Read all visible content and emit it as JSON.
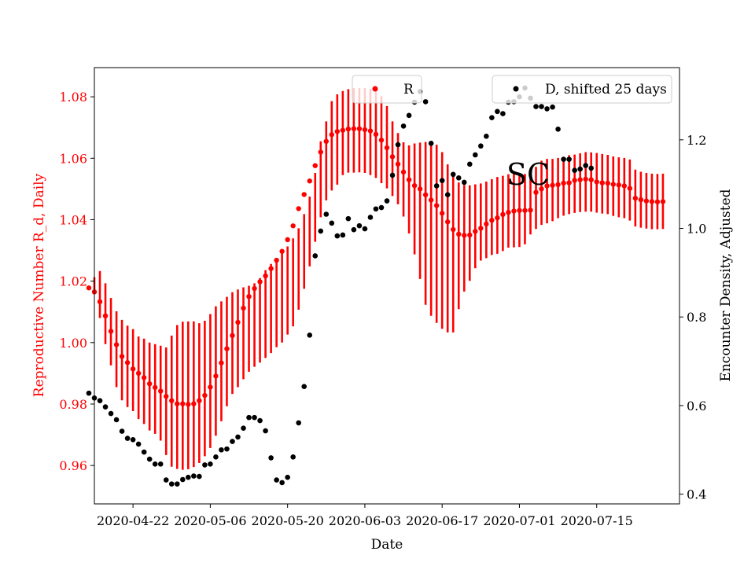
{
  "chart_data": {
    "type": "scatter",
    "annotation": "SC",
    "xlabel": "Date",
    "ylabel_left": "Reproductive Number R_d, Daily",
    "ylabel_right": "Encounter Density, Adjusted",
    "x_ticks": [
      "2020-04-22",
      "2020-05-06",
      "2020-05-20",
      "2020-06-03",
      "2020-06-17",
      "2020-07-01",
      "2020-07-15"
    ],
    "y_left_ticks": [
      "0.96",
      "0.98",
      "1.00",
      "1.02",
      "1.04",
      "1.06",
      "1.08"
    ],
    "y_right_ticks": [
      "0.4",
      "0.6",
      "0.8",
      "1.0",
      "1.2"
    ],
    "x_range": [
      "2020-04-15",
      "2020-07-30"
    ],
    "y_left_range": [
      0.9475,
      1.0895
    ],
    "y_right_range": [
      0.378,
      1.363
    ],
    "grid": false,
    "colors": {
      "r": "#ff0000",
      "d": "#000000",
      "r_label": "#ff0000"
    },
    "legends": [
      {
        "label": "R",
        "color": "#ff0000",
        "placement": "upper-center"
      },
      {
        "label": "D, shifted 25 days",
        "color": "#000000",
        "placement": "upper-right"
      }
    ],
    "series": [
      {
        "name": "R",
        "axis": "left",
        "start_date": "2020-04-14",
        "values": [
          1.0178,
          1.0165,
          1.0133,
          1.0087,
          1.0037,
          0.9993,
          0.9955,
          0.9935,
          0.9914,
          0.99,
          0.9886,
          0.9866,
          0.9854,
          0.9842,
          0.9825,
          0.9811,
          0.9801,
          0.9801,
          0.9799,
          0.9801,
          0.9811,
          0.9828,
          0.9855,
          0.9891,
          0.9934,
          0.998,
          1.0023,
          1.0066,
          1.0112,
          1.015,
          1.0176,
          1.0198,
          1.0217,
          1.0241,
          1.0268,
          1.0297,
          1.0335,
          1.038,
          1.0436,
          1.0482,
          1.0526,
          1.0576,
          1.062,
          1.0655,
          1.0677,
          1.0687,
          1.0691,
          1.0695,
          1.0696,
          1.0696,
          1.0693,
          1.0689,
          1.0678,
          1.0659,
          1.0634,
          1.0605,
          1.0581,
          1.0555,
          1.053,
          1.0511,
          1.05,
          1.0481,
          1.0464,
          1.0446,
          1.0421,
          1.0393,
          1.0368,
          1.0353,
          1.0349,
          1.035,
          1.0362,
          1.0372,
          1.0386,
          1.0398,
          1.0406,
          1.0417,
          1.0424,
          1.0428,
          1.043,
          1.043,
          1.0431,
          1.0489,
          1.05,
          1.051,
          1.0512,
          1.0514,
          1.0519,
          1.052,
          1.0528,
          1.053,
          1.0532,
          1.053,
          1.0523,
          1.052,
          1.0519,
          1.0515,
          1.0513,
          1.051,
          1.0502,
          1.047,
          1.0465,
          1.0461,
          1.0459,
          1.0458,
          1.0459
        ],
        "lower": [
          1.0185,
          1.0169,
          1.008,
          0.9995,
          0.9926,
          0.9855,
          0.9812,
          0.979,
          0.9777,
          0.9751,
          0.9735,
          0.9714,
          0.9703,
          0.9681,
          0.9634,
          0.9596,
          0.9589,
          0.9586,
          0.9588,
          0.9595,
          0.9608,
          0.963,
          0.9657,
          0.9697,
          0.9744,
          0.9793,
          0.9833,
          0.9855,
          0.9881,
          0.9905,
          0.9921,
          0.9935,
          0.995,
          0.9966,
          0.9985,
          1.0,
          1.0026,
          1.0053,
          1.0107,
          1.0175,
          1.0248,
          1.0328,
          1.0408,
          1.0463,
          1.0495,
          1.0514,
          1.0545,
          1.0553,
          1.0553,
          1.0554,
          1.0552,
          1.0545,
          1.0536,
          1.0519,
          1.0502,
          1.0477,
          1.045,
          1.041,
          1.0355,
          1.0287,
          1.0207,
          1.0123,
          1.0087,
          1.0064,
          1.0045,
          1.0033,
          1.0033,
          1.0109,
          1.0166,
          1.0201,
          1.0242,
          1.0267,
          1.0275,
          1.0285,
          1.0289,
          1.0298,
          1.0309,
          1.031,
          1.0311,
          1.032,
          1.0352,
          1.037,
          1.0383,
          1.0388,
          1.0395,
          1.0405,
          1.0413,
          1.0418,
          1.0422,
          1.0425,
          1.0426,
          1.0426,
          1.0423,
          1.042,
          1.0418,
          1.0412,
          1.0408,
          1.0405,
          1.0397,
          1.0378,
          1.0374,
          1.0371,
          1.0369,
          1.0369,
          1.037
        ],
        "upper": [
          1.0185,
          1.0213,
          1.0233,
          1.0193,
          1.0145,
          1.0102,
          1.0074,
          1.0055,
          1.0044,
          1.002,
          1.0013,
          1.0,
          0.9995,
          0.999,
          0.9984,
          1.0023,
          1.0057,
          1.0068,
          1.0069,
          1.0069,
          1.0063,
          1.0071,
          1.0093,
          1.0118,
          1.0134,
          1.0149,
          1.0164,
          1.0173,
          1.018,
          1.0185,
          1.0193,
          1.021,
          1.0236,
          1.0256,
          1.0273,
          1.029,
          1.0313,
          1.0339,
          1.0372,
          1.0418,
          1.0475,
          1.0552,
          1.0655,
          1.072,
          1.0786,
          1.0808,
          1.0819,
          1.0825,
          1.0828,
          1.0828,
          1.0828,
          1.0826,
          1.082,
          1.0802,
          1.077,
          1.072,
          1.0682,
          1.0652,
          1.0642,
          1.0648,
          1.0651,
          1.0653,
          1.065,
          1.0644,
          1.062,
          1.058,
          1.0544,
          1.0521,
          1.0513,
          1.0512,
          1.0515,
          1.0518,
          1.0524,
          1.0532,
          1.0539,
          1.0543,
          1.0548,
          1.0551,
          1.0552,
          1.0549,
          1.0548,
          1.0572,
          1.0592,
          1.0598,
          1.0598,
          1.0601,
          1.0605,
          1.061,
          1.0612,
          1.0616,
          1.062,
          1.0619,
          1.0617,
          1.0614,
          1.0611,
          1.0606,
          1.0603,
          1.0601,
          1.0596,
          1.0563,
          1.0556,
          1.0552,
          1.055,
          1.0549,
          1.055
        ]
      },
      {
        "name": "D, shifted 25 days",
        "axis": "right",
        "points": [
          [
            "2020-04-14",
            0.628
          ],
          [
            "2020-04-15",
            0.617
          ],
          [
            "2020-04-16",
            0.611
          ],
          [
            "2020-04-17",
            0.597
          ],
          [
            "2020-04-18",
            0.582
          ],
          [
            "2020-04-19",
            0.568
          ],
          [
            "2020-04-20",
            0.542
          ],
          [
            "2020-04-21",
            0.526
          ],
          [
            "2020-04-22",
            0.523
          ],
          [
            "2020-04-23",
            0.513
          ],
          [
            "2020-04-24",
            0.495
          ],
          [
            "2020-04-25",
            0.479
          ],
          [
            "2020-04-26",
            0.468
          ],
          [
            "2020-04-27",
            0.468
          ],
          [
            "2020-04-28",
            0.432
          ],
          [
            "2020-04-29",
            0.423
          ],
          [
            "2020-04-30",
            0.423
          ],
          [
            "2020-05-01",
            0.433
          ],
          [
            "2020-05-02",
            0.438
          ],
          [
            "2020-05-03",
            0.441
          ],
          [
            "2020-05-04",
            0.44
          ],
          [
            "2020-05-05",
            0.466
          ],
          [
            "2020-05-06",
            0.468
          ],
          [
            "2020-05-07",
            0.484
          ],
          [
            "2020-05-08",
            0.5
          ],
          [
            "2020-05-09",
            0.502
          ],
          [
            "2020-05-10",
            0.519
          ],
          [
            "2020-05-11",
            0.529
          ],
          [
            "2020-05-12",
            0.549
          ],
          [
            "2020-05-13",
            0.573
          ],
          [
            "2020-05-14",
            0.573
          ],
          [
            "2020-05-15",
            0.566
          ],
          [
            "2020-05-16",
            0.543
          ],
          [
            "2020-05-17",
            0.482
          ],
          [
            "2020-05-18",
            0.432
          ],
          [
            "2020-05-19",
            0.426
          ],
          [
            "2020-05-20",
            0.438
          ],
          [
            "2020-05-21",
            0.484
          ],
          [
            "2020-05-22",
            0.561
          ],
          [
            "2020-05-23",
            0.643
          ],
          [
            "2020-05-24",
            0.759
          ],
          [
            "2020-05-25",
            0.938
          ],
          [
            "2020-05-26",
            0.994
          ],
          [
            "2020-05-27",
            1.032
          ],
          [
            "2020-05-28",
            1.012
          ],
          [
            "2020-05-29",
            0.983
          ],
          [
            "2020-05-30",
            0.985
          ],
          [
            "2020-05-31",
            1.022
          ],
          [
            "2020-06-01",
            0.997
          ],
          [
            "2020-06-02",
            1.006
          ],
          [
            "2020-06-03",
            0.999
          ],
          [
            "2020-06-04",
            1.025
          ],
          [
            "2020-06-05",
            1.044
          ],
          [
            "2020-06-06",
            1.047
          ],
          [
            "2020-06-07",
            1.062
          ],
          [
            "2020-06-08",
            1.12
          ],
          [
            "2020-06-09",
            1.189
          ],
          [
            "2020-06-10",
            1.231
          ],
          [
            "2020-06-11",
            1.255
          ],
          [
            "2020-06-12",
            1.285
          ],
          [
            "2020-06-13",
            1.309
          ],
          [
            "2020-06-14",
            1.286
          ],
          [
            "2020-06-15",
            1.192
          ],
          [
            "2020-06-16",
            1.096
          ],
          [
            "2020-06-17",
            1.108
          ],
          [
            "2020-06-18",
            1.076
          ],
          [
            "2020-06-19",
            1.122
          ],
          [
            "2020-06-20",
            1.114
          ],
          [
            "2020-06-21",
            1.104
          ],
          [
            "2020-06-22",
            1.145
          ],
          [
            "2020-06-23",
            1.166
          ],
          [
            "2020-06-24",
            1.186
          ],
          [
            "2020-06-25",
            1.208
          ],
          [
            "2020-06-26",
            1.25
          ],
          [
            "2020-06-27",
            1.264
          ],
          [
            "2020-06-28",
            1.259
          ],
          [
            "2020-06-29",
            1.285
          ],
          [
            "2020-06-30",
            1.286
          ],
          [
            "2020-07-01",
            1.297
          ],
          [
            "2020-07-02",
            1.317
          ],
          [
            "2020-07-03",
            1.294
          ],
          [
            "2020-07-04",
            1.275
          ],
          [
            "2020-07-05",
            1.275
          ],
          [
            "2020-07-06",
            1.27
          ],
          [
            "2020-07-07",
            1.274
          ],
          [
            "2020-07-08",
            1.224
          ],
          [
            "2020-07-09",
            1.156
          ],
          [
            "2020-07-10",
            1.156
          ],
          [
            "2020-07-11",
            1.131
          ],
          [
            "2020-07-12",
            1.134
          ],
          [
            "2020-07-13",
            1.142
          ],
          [
            "2020-07-14",
            1.136
          ]
        ]
      }
    ]
  }
}
